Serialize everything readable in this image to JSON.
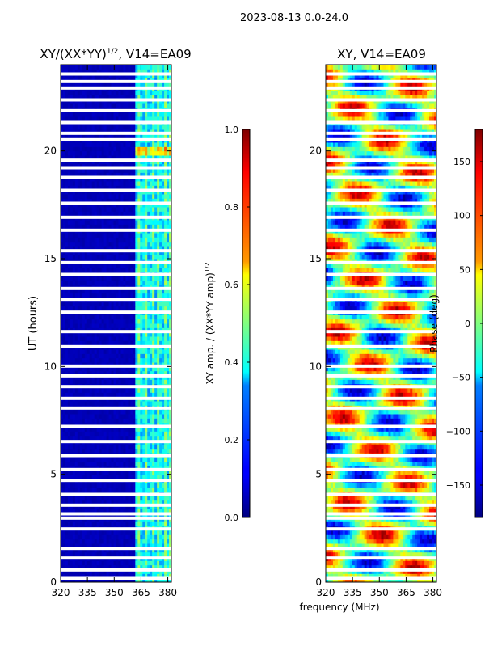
{
  "chart_data": {
    "type": "heatmap",
    "suptitle": "2023-08-13 0.0-24.0",
    "xlabel_shared": "frequency (MHz)",
    "panels": [
      {
        "title_main": "XY/(XX*YY)",
        "title_sup": "1/2",
        "title_tail": ", V14=EA09",
        "ylabel": "UT (hours)",
        "xlim": [
          320,
          382
        ],
        "ylim": [
          0,
          24
        ],
        "xticks": [
          "320",
          "335",
          "350",
          "365",
          "380"
        ],
        "xtick_values": [
          320,
          335,
          350,
          365,
          380
        ],
        "yticks": [
          "0",
          "5",
          "10",
          "15",
          "20"
        ],
        "ytick_values": [
          0,
          5,
          10,
          15,
          20
        ],
        "quantity": "normalized XY amplitude",
        "colorbar": {
          "label_main": "XY amp. / (XX*YY amp)",
          "label_sup": "1/2",
          "min": 0.0,
          "max": 1.0,
          "ticks": [
            "0.0",
            "0.2",
            "0.4",
            "0.6",
            "0.8",
            "1.0"
          ],
          "tick_values": [
            0.0,
            0.2,
            0.4,
            0.6,
            0.8,
            1.0
          ]
        }
      },
      {
        "title_main": "XY, V14=EA09",
        "ylabel": "",
        "xlim": [
          320,
          382
        ],
        "ylim": [
          0,
          24
        ],
        "xticks": [
          "320",
          "335",
          "350",
          "365",
          "380"
        ],
        "xtick_values": [
          320,
          335,
          350,
          365,
          380
        ],
        "yticks": [
          "0",
          "5",
          "10",
          "15",
          "20"
        ],
        "ytick_values": [
          0,
          5,
          10,
          15,
          20
        ],
        "quantity": "XY phase",
        "colorbar": {
          "label_main": "Phase (deg)",
          "min": -180,
          "max": 180,
          "ticks": [
            "−150",
            "−100",
            "−50",
            "0",
            "50",
            "100",
            "150"
          ],
          "tick_values": [
            -150,
            -100,
            -50,
            0,
            50,
            100,
            150
          ]
        }
      }
    ],
    "flagged_ut_hours": [
      0.15,
      0.55,
      1.1,
      1.55,
      2.45,
      2.95,
      3.15,
      3.55,
      4.05,
      4.7,
      5.2,
      5.85,
      6.5,
      7.2,
      8.05,
      8.5,
      9.05,
      9.55,
      10.0,
      10.9,
      11.6,
      12.5,
      13.1,
      13.6,
      14.25,
      14.8,
      15.35,
      16.3,
      16.9,
      17.55,
      18.15,
      18.75,
      19.2,
      19.55,
      20.5,
      20.8,
      21.3,
      21.85,
      22.35,
      22.9,
      23.2,
      23.55
    ],
    "amplitude_active_band_mhz": [
      362,
      382
    ],
    "amplitude_strong_channels_mhz": [
      364,
      367.5,
      371.5,
      375,
      378.5,
      381
    ],
    "amplitude_high_ut_hours": [
      19.85,
      20.2
    ]
  }
}
